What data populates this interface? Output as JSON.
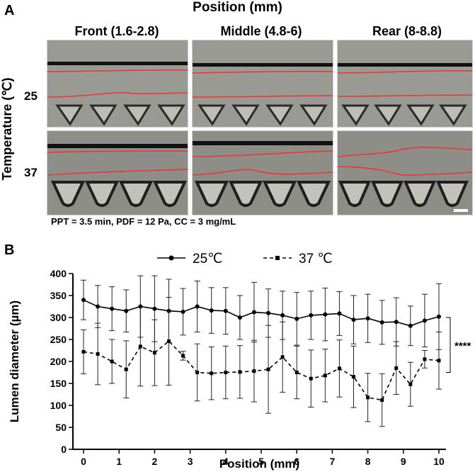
{
  "panel_a": {
    "letter": "A",
    "top_title": "Position (mm)",
    "columns": [
      "Front (1.6-2.8)",
      "Middle (4.8-6)",
      "Rear (8-8.8)"
    ],
    "row_axis_label": "Temperature (℃)",
    "rows": [
      "25",
      "37"
    ],
    "caption": "PPT = 3.5 min, PDF = 12 Pa, CC = 3 mg/mL"
  },
  "panel_b": {
    "letter": "B"
  },
  "chart_data": {
    "type": "line",
    "xlabel": "Position (mm)",
    "ylabel": "Lumen diameter (µm)",
    "xlim": [
      0,
      10
    ],
    "ylim": [
      0,
      400
    ],
    "xticks": [
      0,
      1,
      2,
      3,
      4,
      5,
      6,
      7,
      8,
      9,
      10
    ],
    "yticks": [
      0,
      50,
      100,
      150,
      200,
      250,
      300,
      350,
      400
    ],
    "x": [
      0,
      0.4,
      0.8,
      1.2,
      1.6,
      2.0,
      2.4,
      2.8,
      3.2,
      3.6,
      4.0,
      4.4,
      4.8,
      5.2,
      5.6,
      6.0,
      6.4,
      6.8,
      7.2,
      7.6,
      8.0,
      8.4,
      8.8,
      9.2,
      9.6,
      10.0
    ],
    "series": [
      {
        "name": "25℃",
        "style": "solid-circle",
        "values": [
          340,
          325,
          320,
          315,
          325,
          320,
          315,
          313,
          325,
          316,
          315,
          300,
          312,
          310,
          305,
          297,
          305,
          307,
          309,
          295,
          298,
          289,
          290,
          281,
          293,
          302
        ],
        "errors": [
          45,
          48,
          50,
          48,
          70,
          75,
          72,
          53,
          58,
          52,
          53,
          50,
          68,
          55,
          55,
          60,
          55,
          60,
          50,
          55,
          55,
          50,
          55,
          45,
          60,
          75
        ]
      },
      {
        "name": "37 ℃",
        "style": "dashed-square",
        "values": [
          222,
          217,
          200,
          182,
          234,
          220,
          246,
          213,
          175,
          173,
          175,
          176,
          178,
          182,
          210,
          175,
          161,
          168,
          184,
          165,
          118,
          112,
          185,
          148,
          205,
          202
        ],
        "errors": [
          50,
          70,
          50,
          65,
          90,
          75,
          100,
          10,
          65,
          60,
          60,
          60,
          70,
          100,
          80,
          60,
          65,
          60,
          65,
          70,
          55,
          60,
          60,
          50,
          20,
          65
        ]
      }
    ],
    "significance": "****"
  }
}
